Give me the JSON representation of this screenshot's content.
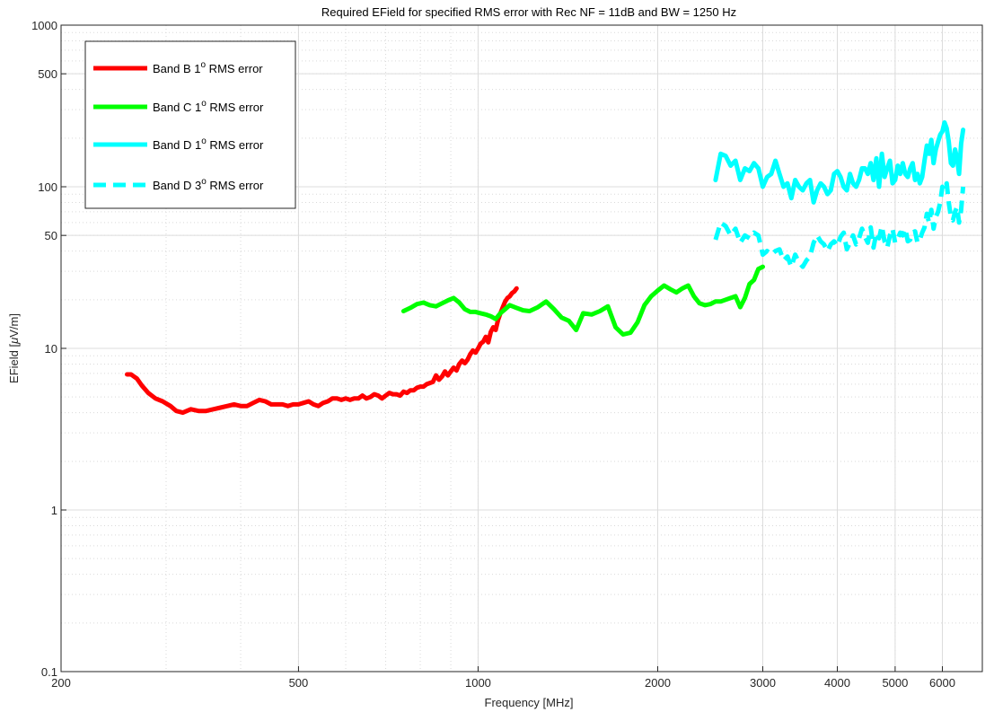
{
  "chart_data": {
    "type": "line",
    "title": "Required EField for specified RMS error with Rec NF = 11dB and BW = 1250 Hz",
    "xlabel": "Frequency [MHz]",
    "ylabel": "EField [",
    "ylabel_mu": "μ",
    "ylabel_unit": "V/m]",
    "x_scale": "log",
    "y_scale": "log",
    "xlim": [
      200,
      7000
    ],
    "ylim": [
      0.1,
      1000
    ],
    "x_ticks": [
      200,
      500,
      1000,
      2000,
      3000,
      4000,
      5000,
      6000
    ],
    "x_tick_labels": [
      "200",
      "500",
      "1000",
      "2000",
      "3000",
      "4000",
      "5000",
      "6000"
    ],
    "y_ticks": [
      0.1,
      1,
      10,
      50,
      100,
      500,
      1000
    ],
    "y_tick_labels": [
      "0.1",
      "1",
      "10",
      "50",
      "100",
      "500",
      "1000"
    ],
    "grid": true,
    "legend_position": "top-left",
    "series": [
      {
        "name_prefix": "Band B 1",
        "name_sup": "o",
        "name_suffix": " RMS error",
        "color": "#ff0000",
        "style": "solid",
        "x": [
          258,
          262,
          268,
          273,
          280,
          288,
          296,
          305,
          312,
          320,
          330,
          340,
          350,
          360,
          370,
          380,
          390,
          400,
          410,
          420,
          430,
          440,
          450,
          460,
          470,
          480,
          490,
          500,
          510,
          520,
          530,
          540,
          550,
          560,
          570,
          580,
          590,
          600,
          610,
          620,
          630,
          640,
          650,
          660,
          670,
          680,
          690,
          700,
          710,
          720,
          730,
          740,
          750,
          760,
          770,
          780,
          790,
          800,
          810,
          820,
          830,
          840,
          850,
          860,
          870,
          880,
          890,
          900,
          910,
          920,
          930,
          940,
          950,
          960,
          970,
          980,
          990,
          1000,
          1010,
          1020,
          1030,
          1040,
          1050,
          1060,
          1070,
          1080,
          1090,
          1100,
          1110,
          1120,
          1130,
          1140,
          1150,
          1160
        ],
        "y": [
          6.9,
          6.9,
          6.5,
          5.9,
          5.3,
          4.9,
          4.7,
          4.4,
          4.1,
          4.0,
          4.2,
          4.1,
          4.1,
          4.2,
          4.3,
          4.4,
          4.5,
          4.4,
          4.4,
          4.6,
          4.8,
          4.7,
          4.5,
          4.5,
          4.5,
          4.4,
          4.5,
          4.5,
          4.6,
          4.7,
          4.5,
          4.4,
          4.6,
          4.7,
          4.9,
          4.9,
          4.8,
          4.9,
          4.8,
          4.9,
          4.9,
          5.1,
          4.9,
          5.0,
          5.2,
          5.1,
          4.9,
          5.1,
          5.3,
          5.2,
          5.2,
          5.1,
          5.4,
          5.3,
          5.5,
          5.5,
          5.7,
          5.8,
          5.8,
          6.0,
          6.1,
          6.2,
          6.8,
          6.4,
          6.7,
          7.2,
          6.8,
          7.2,
          7.6,
          7.3,
          8.0,
          8.4,
          8.1,
          8.5,
          9.2,
          9.7,
          9.4,
          10.0,
          10.7,
          11.0,
          11.8,
          10.9,
          12.6,
          13.5,
          13.0,
          15.0,
          16.5,
          18.0,
          19.5,
          20.5,
          21.0,
          22.0,
          22.5,
          23.5
        ]
      },
      {
        "name_prefix": "Band C 1",
        "name_sup": "o",
        "name_suffix": " RMS error",
        "color": "#00ff00",
        "style": "solid",
        "x": [
          750,
          770,
          790,
          810,
          830,
          850,
          870,
          890,
          910,
          930,
          950,
          970,
          990,
          1010,
          1030,
          1050,
          1070,
          1090,
          1110,
          1130,
          1160,
          1190,
          1220,
          1260,
          1300,
          1340,
          1380,
          1420,
          1460,
          1500,
          1550,
          1600,
          1650,
          1700,
          1750,
          1800,
          1850,
          1900,
          1950,
          2000,
          2050,
          2100,
          2150,
          2200,
          2250,
          2300,
          2350,
          2400,
          2450,
          2500,
          2550,
          2600,
          2650,
          2700,
          2750,
          2800,
          2850,
          2900,
          2950,
          3000
        ],
        "y": [
          17.0,
          17.8,
          18.8,
          19.2,
          18.5,
          18.2,
          19.0,
          19.8,
          20.5,
          19.2,
          17.5,
          16.8,
          16.8,
          16.5,
          16.2,
          15.8,
          15.2,
          16.5,
          17.5,
          18.5,
          17.8,
          17.2,
          17.0,
          18.0,
          19.5,
          17.5,
          15.5,
          14.8,
          13.0,
          16.5,
          16.2,
          17.0,
          18.2,
          13.5,
          12.2,
          12.5,
          14.5,
          18.5,
          21.0,
          22.8,
          24.5,
          23.2,
          22.2,
          23.5,
          24.5,
          21.0,
          19.0,
          18.5,
          18.8,
          19.5,
          19.5,
          20.0,
          20.5,
          21.0,
          18.0,
          20.5,
          25.0,
          26.5,
          31.0,
          32.0
        ]
      },
      {
        "name_prefix": "Band D 1",
        "name_sup": "o",
        "name_suffix": " RMS error",
        "color": "#00ffff",
        "style": "solid",
        "x": [
          2500,
          2550,
          2600,
          2650,
          2700,
          2750,
          2800,
          2850,
          2900,
          2950,
          3000,
          3050,
          3100,
          3150,
          3200,
          3250,
          3300,
          3350,
          3400,
          3450,
          3500,
          3550,
          3600,
          3650,
          3700,
          3750,
          3800,
          3850,
          3900,
          3950,
          4000,
          4050,
          4100,
          4150,
          4200,
          4250,
          4300,
          4350,
          4400,
          4450,
          4500,
          4550,
          4600,
          4650,
          4700,
          4750,
          4800,
          4850,
          4900,
          4950,
          5000,
          5050,
          5100,
          5150,
          5200,
          5250,
          5300,
          5350,
          5400,
          5450,
          5500,
          5550,
          5600,
          5650,
          5700,
          5750,
          5800,
          5850,
          5900,
          5950,
          6000,
          6050,
          6100,
          6150,
          6200,
          6250,
          6300,
          6350,
          6400,
          6450,
          6500
        ],
        "y": [
          110,
          160,
          155,
          135,
          145,
          110,
          130,
          125,
          140,
          130,
          100,
          115,
          120,
          145,
          120,
          100,
          105,
          85,
          110,
          100,
          95,
          105,
          110,
          80,
          95,
          105,
          100,
          90,
          95,
          120,
          125,
          115,
          100,
          95,
          120,
          105,
          100,
          110,
          130,
          130,
          120,
          140,
          110,
          150,
          100,
          160,
          115,
          130,
          145,
          105,
          110,
          135,
          120,
          140,
          120,
          115,
          130,
          140,
          110,
          120,
          105,
          115,
          145,
          180,
          160,
          195,
          140,
          170,
          190,
          210,
          220,
          250,
          230,
          190,
          140,
          135,
          170,
          150,
          120,
          185,
          225
        ]
      },
      {
        "name_prefix": "Band D 3",
        "name_sup": "o",
        "name_suffix": " RMS error",
        "color": "#00ffff",
        "style": "dashed",
        "x": [
          2500,
          2550,
          2600,
          2650,
          2700,
          2750,
          2800,
          2850,
          2900,
          2950,
          3000,
          3050,
          3100,
          3150,
          3200,
          3250,
          3300,
          3350,
          3400,
          3450,
          3500,
          3550,
          3600,
          3650,
          3700,
          3750,
          3800,
          3850,
          3900,
          3950,
          4000,
          4050,
          4100,
          4150,
          4200,
          4250,
          4300,
          4350,
          4400,
          4450,
          4500,
          4550,
          4600,
          4650,
          4700,
          4750,
          4800,
          4850,
          4900,
          4950,
          5000,
          5050,
          5100,
          5150,
          5200,
          5250,
          5300,
          5350,
          5400,
          5450,
          5500,
          5550,
          5600,
          5650,
          5700,
          5750,
          5800,
          5850,
          5900,
          5950,
          6000,
          6050,
          6100,
          6150,
          6200,
          6250,
          6300,
          6350,
          6400,
          6450,
          6500
        ],
        "y": [
          47,
          60,
          57,
          50,
          55,
          45,
          50,
          48,
          52,
          50,
          38,
          40,
          38,
          40,
          41,
          35,
          37,
          32,
          38,
          34,
          32,
          35,
          37,
          45,
          50,
          46,
          44,
          40,
          44,
          46,
          43,
          49,
          52,
          41,
          45,
          50,
          44,
          48,
          55,
          49,
          45,
          56,
          42,
          52,
          48,
          57,
          46,
          42,
          50,
          55,
          45,
          48,
          52,
          50,
          55,
          46,
          47,
          52,
          53,
          45,
          47,
          52,
          56,
          68,
          60,
          72,
          55,
          65,
          70,
          80,
          100,
          95,
          105,
          80,
          65,
          62,
          70,
          75,
          60,
          72,
          100
        ]
      }
    ]
  }
}
